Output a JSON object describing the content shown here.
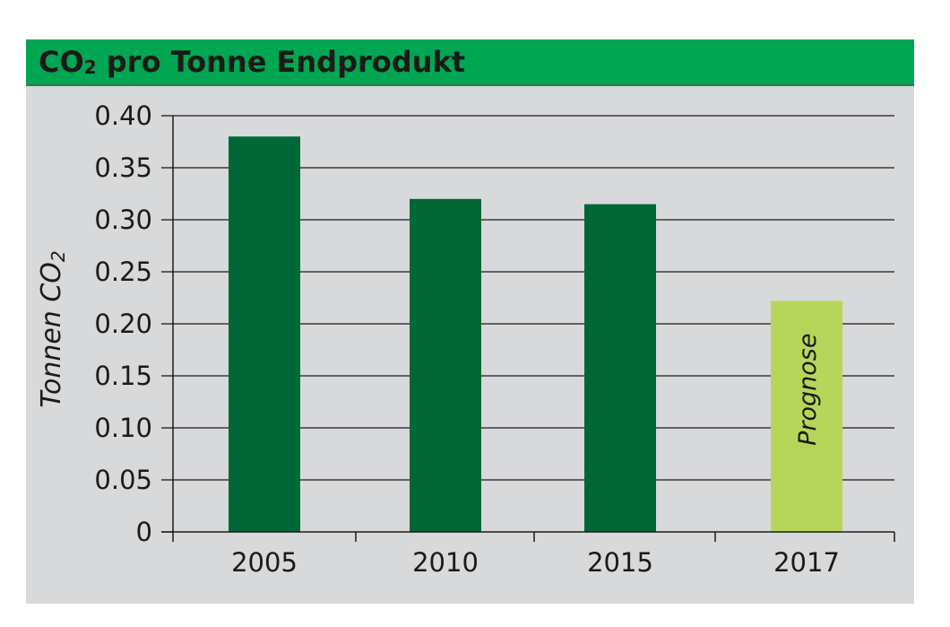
{
  "chart_data": {
    "type": "bar",
    "title": "CO",
    "title_subscript": "2",
    "title_rest": " pro Tonne Endprodukt",
    "ylabel": "Tonnen CO",
    "ylabel_subscript": "2",
    "xlabel": "",
    "categories": [
      "2005",
      "2010",
      "2015",
      "2017"
    ],
    "values": [
      0.38,
      0.32,
      0.315,
      0.222
    ],
    "bar_colors": [
      "#006837",
      "#006837",
      "#006837",
      "#b5d65a"
    ],
    "bar_labels": [
      "",
      "",
      "",
      "Prognose"
    ],
    "ylim": [
      0,
      0.4
    ],
    "yticks": [
      0,
      0.05,
      0.1,
      0.15,
      0.2,
      0.25,
      0.3,
      0.35,
      0.4
    ],
    "ytick_labels": [
      "0",
      "0.05",
      "0.10",
      "0.15",
      "0.20",
      "0.25",
      "0.30",
      "0.35",
      "0.40"
    ],
    "grid": true,
    "legend": "none"
  },
  "colors": {
    "title_bar": "#00a651",
    "panel": "#d8d9db",
    "axis": "#1a1a1a"
  }
}
